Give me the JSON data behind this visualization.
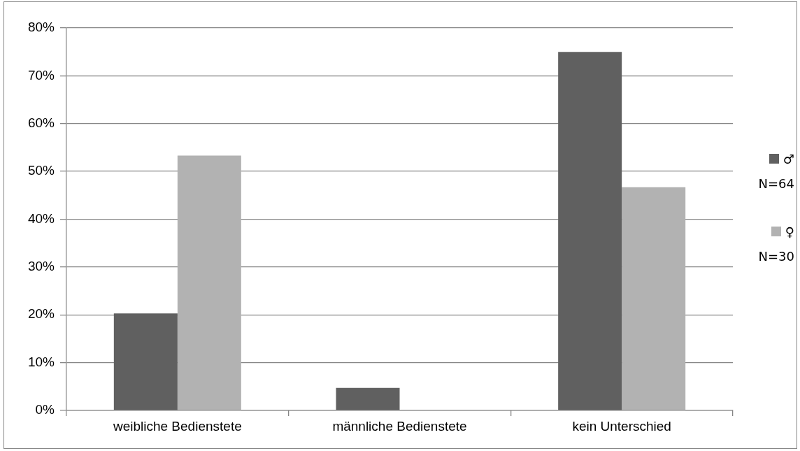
{
  "chart_data": {
    "type": "bar",
    "categories": [
      "weibliche Bedienstete",
      "männliche Bedienstete",
      "kein Unterschied"
    ],
    "series": [
      {
        "name": "♂ N=64",
        "color": "#606060",
        "values": [
          20.3,
          4.7,
          75
        ]
      },
      {
        "name": "♀ N=30",
        "color": "#b2b2b2",
        "values": [
          53.3,
          0,
          46.7
        ]
      }
    ],
    "ylim": [
      0,
      80
    ],
    "yticks": [
      {
        "value": 0,
        "label": "0%"
      },
      {
        "value": 10,
        "label": "10%"
      },
      {
        "value": 20,
        "label": "20%"
      },
      {
        "value": 30,
        "label": "30%"
      },
      {
        "value": 40,
        "label": "40%"
      },
      {
        "value": 50,
        "label": "50%"
      },
      {
        "value": 60,
        "label": "60%"
      },
      {
        "value": 70,
        "label": "70%"
      },
      {
        "value": 80,
        "label": "80%"
      }
    ],
    "grid": "y",
    "legend": "right"
  }
}
